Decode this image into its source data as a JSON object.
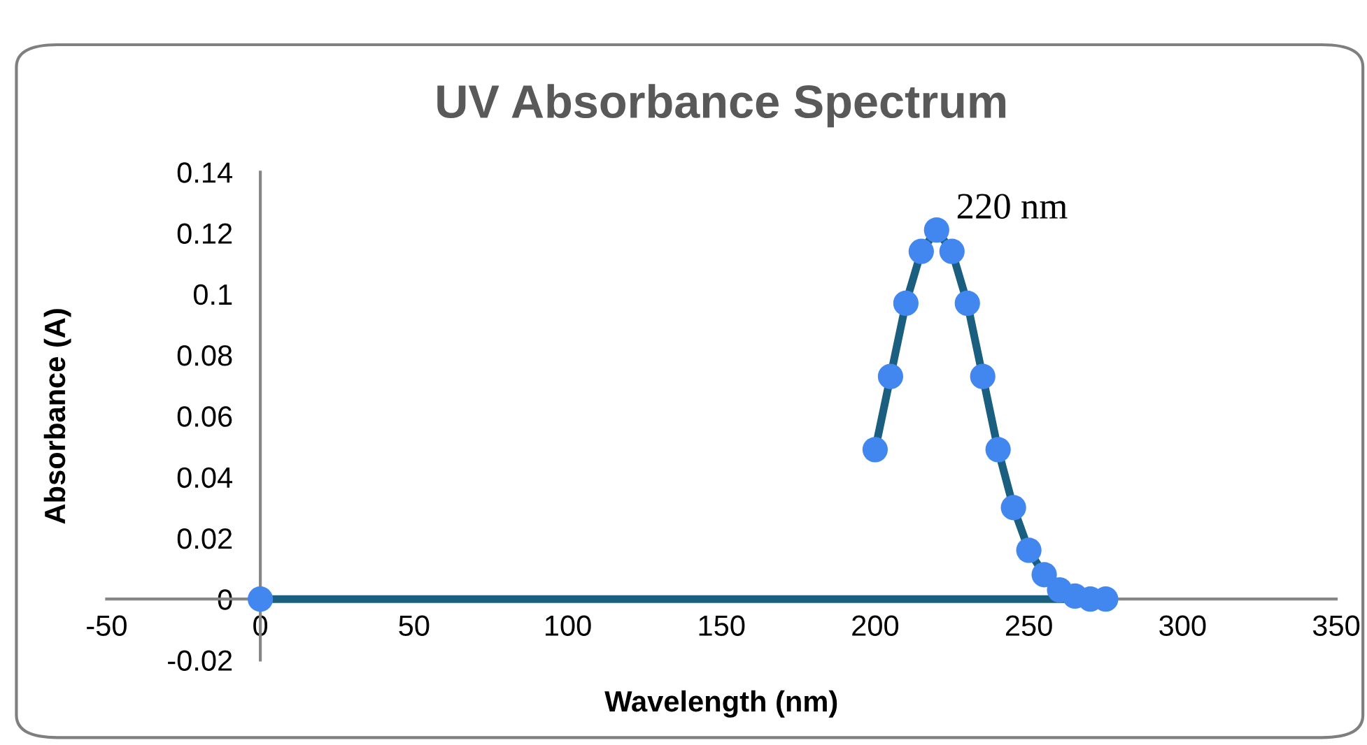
{
  "chart_data": {
    "type": "line",
    "title": "UV Absorbance Spectrum",
    "xlabel": "Wavelength (nm)",
    "ylabel": "Absorbance (A)",
    "x": [
      200,
      205,
      210,
      215,
      220,
      225,
      230,
      235,
      240,
      245,
      250,
      255,
      260,
      265,
      270,
      275,
      0
    ],
    "series": [
      {
        "color": "#1a5f80",
        "colors": [
          "#4287f0",
          "#4287f0",
          "#4287f0",
          "#4287f0",
          "#4287f0",
          "#4287f0",
          "#4287f0",
          "#4287f0",
          "#4287f0",
          "#4287f0",
          "#4287f0",
          "#4287f0",
          "#4287f0",
          "#4287f0",
          "#4287f0",
          "#4287f0",
          "#4287f0"
        ],
        "values": [
          0.049,
          0.073,
          0.097,
          0.114,
          0.121,
          0.114,
          0.097,
          0.073,
          0.049,
          0.03,
          0.016,
          0.008,
          0.003,
          0.001,
          0.0,
          0.0,
          0.0
        ]
      }
    ],
    "marker": "circle",
    "line_style": "solid",
    "grid": false,
    "legend": false,
    "xlim": [
      -50,
      350
    ],
    "xticks": [
      -50,
      0,
      50,
      100,
      150,
      200,
      250,
      300,
      350
    ],
    "ylim": [
      -0.02,
      0.14
    ],
    "yticks": [
      -0.02,
      0,
      0.02,
      0.04,
      0.06,
      0.08,
      0.1,
      0.12,
      0.14
    ],
    "annotations": [
      {
        "text": "220 nm",
        "x": 220,
        "y": 0.121
      }
    ]
  }
}
